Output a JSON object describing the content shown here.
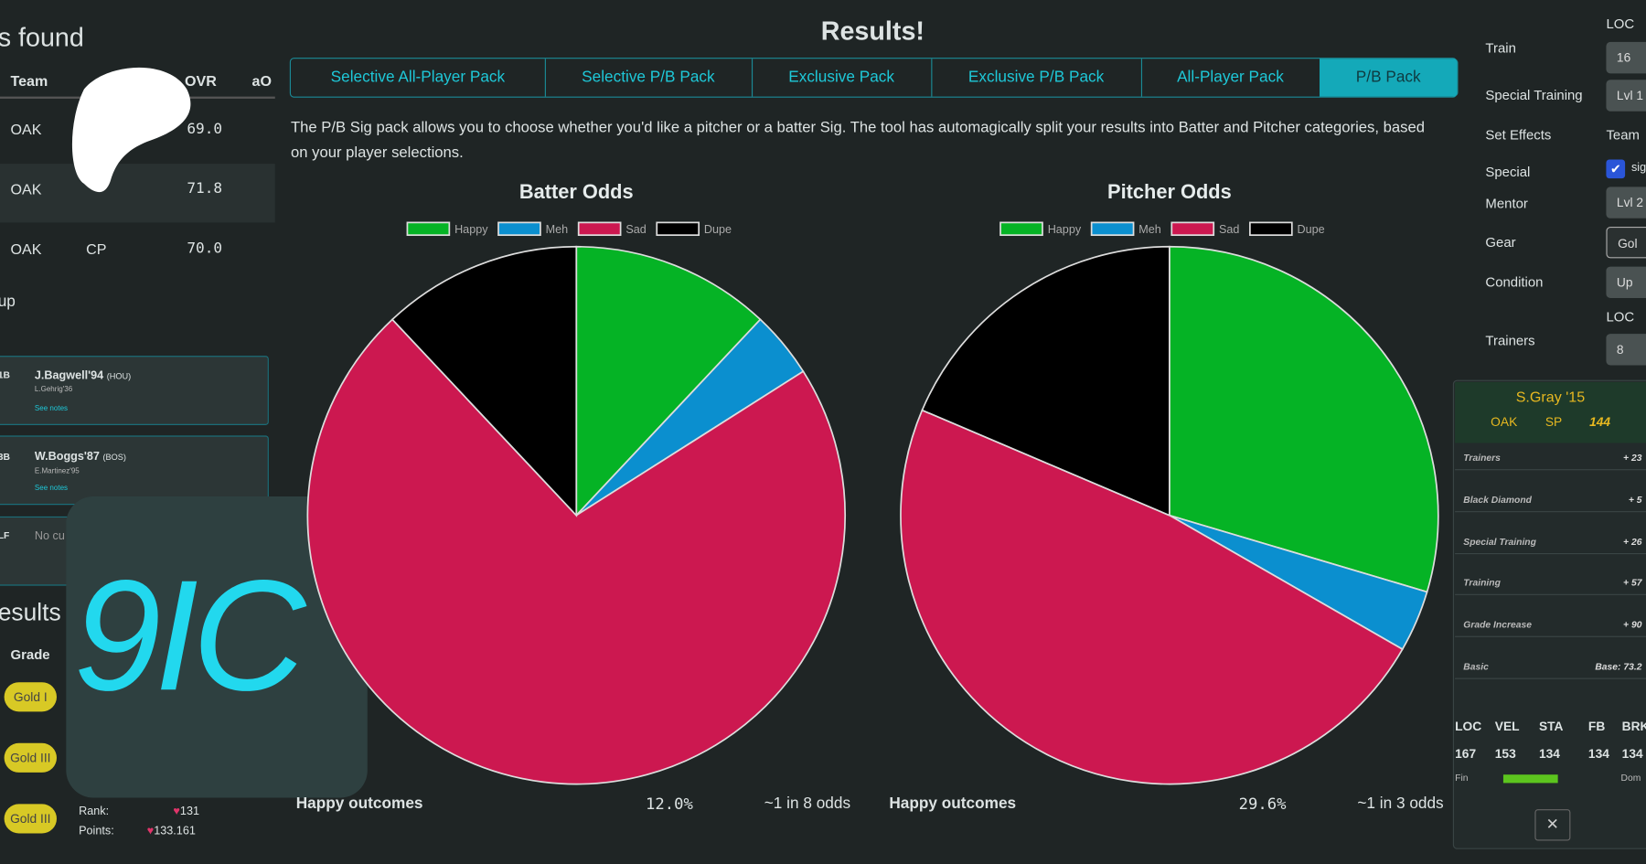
{
  "left_panel": {
    "title": "s found",
    "columns": [
      "Team",
      "OVR",
      "aO"
    ],
    "rows": [
      {
        "team": "OAK",
        "ovr": "69.0"
      },
      {
        "team": "OAK",
        "ovr": "71.8"
      },
      {
        "team": "OAK",
        "pos": "CP",
        "ovr": "70.0"
      }
    ],
    "group_heading": "up",
    "cards": [
      {
        "pos": "1B",
        "name": "J.Bagwell'94",
        "team": "(HOU)",
        "sub": "L.Gehrig'36",
        "link": "See notes"
      },
      {
        "pos": "3B",
        "name": "W.Boggs'87",
        "team": "(BOS)",
        "sub": "E.Martinez'95",
        "link": "See notes"
      },
      {
        "pos": "LF",
        "name": "No cu"
      }
    ],
    "results_heading": "esults",
    "grade_header": "Grade",
    "grades": [
      "Gold I",
      "Gold III",
      "Gold III"
    ],
    "rank_label": "Rank:",
    "rank": "131",
    "points_label": "Points:",
    "points": "133.161"
  },
  "logo": "9IC",
  "header": {
    "title": "Results!",
    "tabs": [
      "Selective All-Player Pack",
      "Selective P/B Pack",
      "Exclusive Pack",
      "Exclusive P/B Pack",
      "All-Player Pack",
      "P/B Pack"
    ],
    "active_tab": 5,
    "description": "The P/B Sig pack allows you to choose whether you'd like a pitcher or a batter Sig. The tool has automagically split your results into Batter and Pitcher categories, based on your player selections."
  },
  "chart_data": [
    {
      "type": "pie",
      "title": "Batter Odds",
      "categories": [
        "Happy",
        "Meh",
        "Sad",
        "Dupe"
      ],
      "values": [
        12,
        4,
        72,
        12
      ],
      "colors": [
        "#05b325",
        "#0b8fcf",
        "#cc1850",
        "#000000"
      ],
      "footer_label": "Happy outcomes",
      "footer_value": "12.0%",
      "footer_odds": "~1 in 8 odds"
    },
    {
      "type": "pie",
      "title": "Pitcher Odds",
      "categories": [
        "Happy",
        "Meh",
        "Sad",
        "Dupe"
      ],
      "values": [
        29.6,
        3.7,
        48.1,
        18.6
      ],
      "colors": [
        "#05b325",
        "#0b8fcf",
        "#cc1850",
        "#000000"
      ],
      "footer_label": "Happy outcomes",
      "footer_value": "29.6%",
      "footer_odds": "~1 in 3 odds"
    }
  ],
  "settings": [
    {
      "label": "Train",
      "value": "16"
    },
    {
      "label": "Special Training",
      "value": "Lvl 1"
    },
    {
      "label": "Set Effects",
      "value": "Team"
    },
    {
      "label": "Special",
      "value": "sig"
    },
    {
      "label": "Mentor",
      "value": "Lvl 2"
    },
    {
      "label": "Gear",
      "value": "Gol"
    },
    {
      "label": "Condition",
      "value": "Up"
    },
    {
      "label": "Trainers",
      "value": "8"
    }
  ],
  "loc_labels": [
    "LOC",
    "LOC"
  ],
  "player_card": {
    "name": "S.Gray '15",
    "team": "OAK",
    "pos": "SP",
    "ovr": "144",
    "sections": [
      {
        "label": "Trainers",
        "total": "+ 23"
      },
      {
        "label": "Black Diamond",
        "total": "+ 5"
      },
      {
        "label": "Special Training",
        "total": "+ 26"
      },
      {
        "label": "Training",
        "total": "+ 57"
      },
      {
        "label": "Grade Increase",
        "total": "+ 90"
      },
      {
        "label": "Basic",
        "total": "Base: 73.2"
      }
    ],
    "stat_names": [
      "LOC",
      "VEL",
      "STA",
      "FB",
      "BRK"
    ],
    "stat_values": [
      "167",
      "153",
      "134",
      "134",
      "134"
    ],
    "footer_left": "Fin",
    "footer_right": "Dom"
  }
}
